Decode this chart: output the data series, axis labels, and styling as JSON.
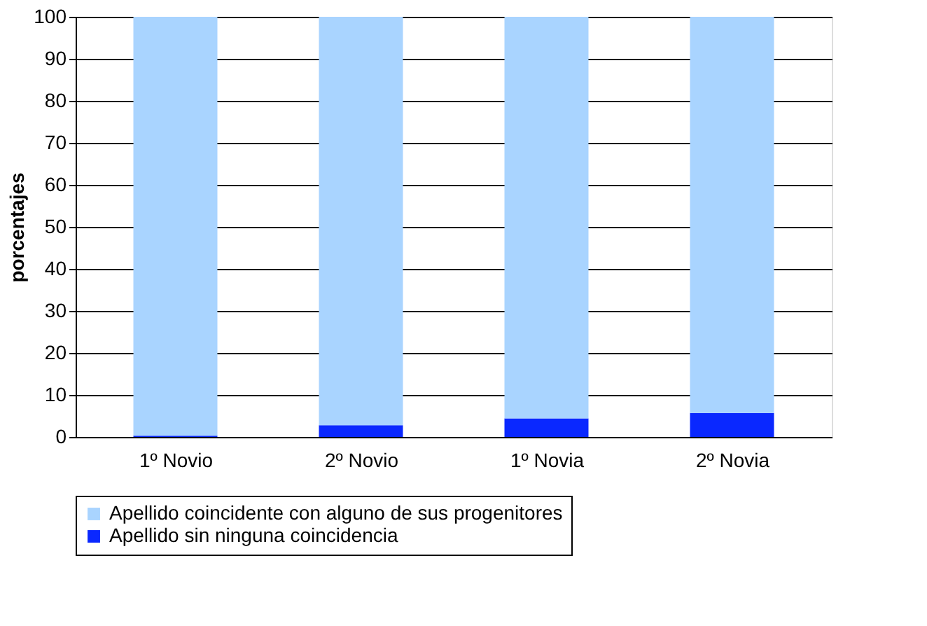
{
  "chart_data": {
    "type": "bar",
    "stacked": true,
    "ylabel": "porcentajes",
    "categories": [
      "1º Novio",
      "2º Novio",
      "1º Novia",
      "2º Novia"
    ],
    "series": [
      {
        "name": "Apellido sin ninguna coincidencia",
        "color": "#0a28ff",
        "values": [
          0.3,
          2.8,
          4.4,
          5.7
        ]
      },
      {
        "name": "Apellido coincidente con alguno de sus progenitores",
        "color": "#a9d4ff",
        "values": [
          99.7,
          97.2,
          95.6,
          94.3
        ]
      }
    ],
    "ylim": [
      0,
      100
    ],
    "yticks": [
      0,
      10,
      20,
      30,
      40,
      50,
      60,
      70,
      80,
      90,
      100
    ],
    "grid": "y",
    "legend": "bottom"
  }
}
